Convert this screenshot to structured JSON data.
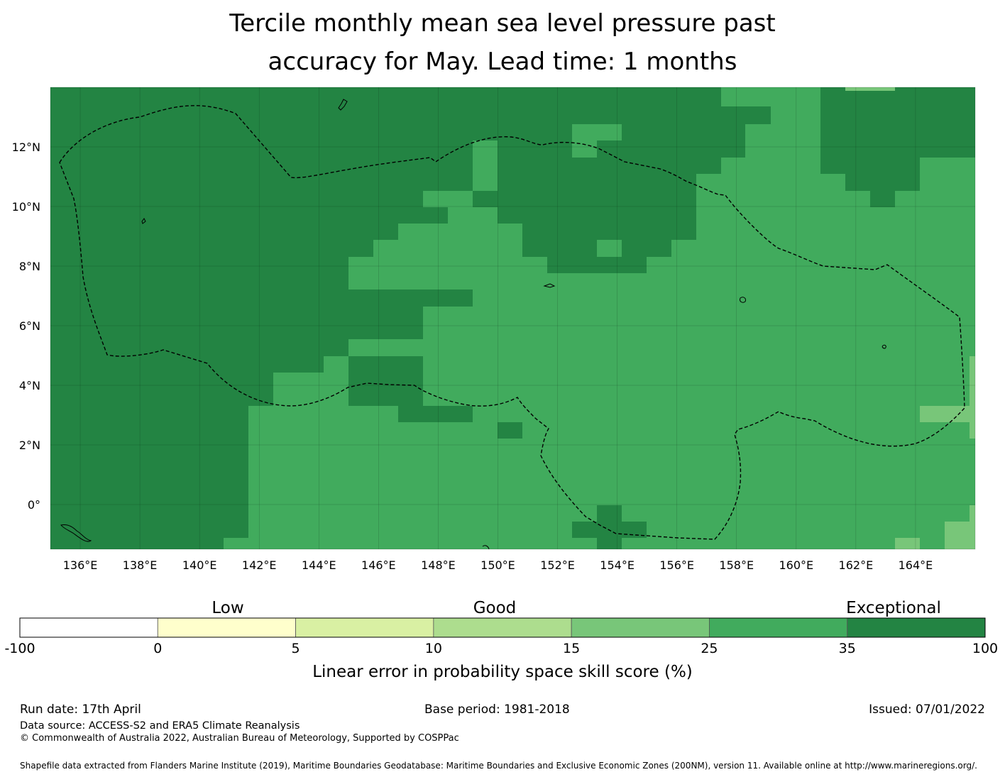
{
  "title": {
    "line1": "Tercile monthly mean sea level pressure past",
    "line2": "accuracy for May. Lead time: 1 months"
  },
  "map": {
    "lon_ticks": [
      "136°E",
      "138°E",
      "140°E",
      "142°E",
      "144°E",
      "146°E",
      "148°E",
      "150°E",
      "152°E",
      "154°E",
      "156°E",
      "158°E",
      "160°E",
      "162°E",
      "164°E"
    ],
    "lat_ticks": [
      "12°N",
      "10°N",
      "8°N",
      "6°N",
      "4°N",
      "2°N",
      "0°"
    ],
    "extent": {
      "lon_min": 135,
      "lon_max": 166,
      "lat_min": -1.5,
      "lat_max": 14
    },
    "grid": true
  },
  "colorbar": {
    "category_labels": [
      "Low",
      "Good",
      "Exceptional"
    ],
    "boundaries": [
      "-100",
      "0",
      "5",
      "10",
      "15",
      "25",
      "35",
      "100"
    ],
    "colors": [
      "#ffffff",
      "#ffffcc",
      "#d9f0a3",
      "#addd8e",
      "#78c679",
      "#41ab5d",
      "#238443"
    ],
    "label": "Linear error in probability space skill score (%)"
  },
  "footer": {
    "run_date": "Run date: 17th April",
    "base_period": "Base period: 1981-2018",
    "issued": "Issued: 07/01/2022",
    "data_source": "Data source: ACCESS-S2 and ERA5 Climate Reanalysis",
    "copyright": "© Commonwealth of Australia 2022, Australian Bureau of Meteorology, Supported by COSPPac",
    "shapefile": "Shapefile data extracted from Flanders Marine Institute (2019), Maritime Boundaries Geodatabase: Maritime Boundaries and Exclusive Economic Zones (200NM), version 11. Available online at http://www.marineregions.org/."
  }
}
